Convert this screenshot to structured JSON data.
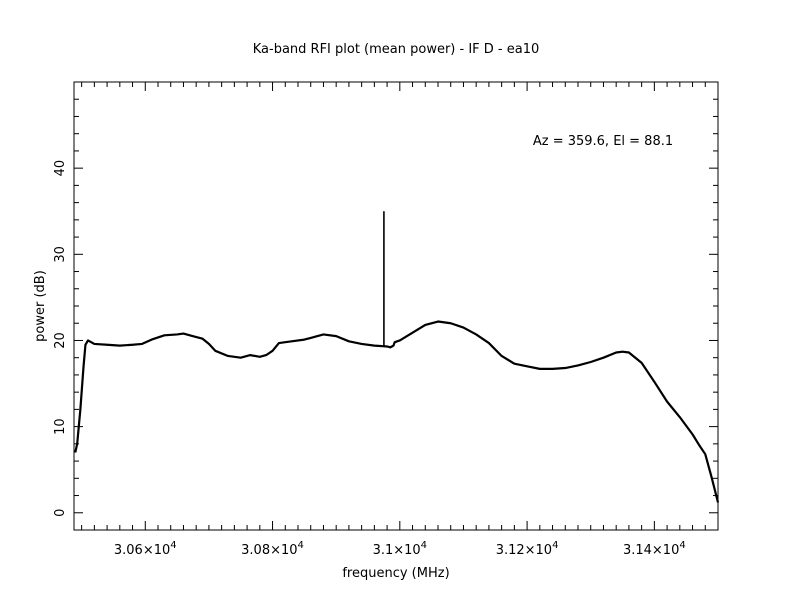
{
  "chart_data": {
    "type": "line",
    "title": "Ka-band RFI plot (mean power) - IF D - ea10",
    "xlabel": "frequency (MHz)",
    "ylabel": "power (dB)",
    "annotation": "Az = 359.6, El = 88.1",
    "xlim": [
      30488,
      31500
    ],
    "ylim": [
      -2,
      50
    ],
    "x_ticks": [
      30600,
      30800,
      31000,
      31200,
      31400
    ],
    "x_tick_labels": [
      {
        "mantissa": "3.06",
        "exponent": "4"
      },
      {
        "mantissa": "3.08",
        "exponent": "4"
      },
      {
        "mantissa": "3.1",
        "exponent": "4"
      },
      {
        "mantissa": "3.12",
        "exponent": "4"
      },
      {
        "mantissa": "3.14",
        "exponent": "4"
      }
    ],
    "y_ticks": [
      0,
      10,
      20,
      30,
      40
    ],
    "y_tick_labels": [
      "0",
      "10",
      "20",
      "30",
      "40"
    ],
    "grid": false,
    "series": [
      {
        "x": [
          30490,
          30493,
          30498,
          30503,
          30506,
          30510,
          30520,
          30540,
          30560,
          30580,
          30595,
          30610,
          30630,
          30650,
          30660,
          30675,
          30690,
          30700,
          30710,
          30730,
          30750,
          30765,
          30780,
          30790,
          30800,
          30810,
          30830,
          30850,
          30860,
          30880,
          30900,
          30920,
          30940,
          30960,
          30980,
          30985,
          30990,
          30992,
          31000,
          31020,
          31040,
          31060,
          31080,
          31100,
          31120,
          31140,
          31160,
          31180,
          31200,
          31220,
          31240,
          31260,
          31280,
          31300,
          31320,
          31340,
          31350,
          31360,
          31380,
          31400,
          31420,
          31440,
          31460,
          31470,
          31480,
          31490,
          31500
        ],
        "y": [
          7,
          8,
          12,
          17,
          19.5,
          20,
          19.6,
          19.5,
          19.4,
          19.5,
          19.6,
          20.1,
          20.6,
          20.7,
          20.8,
          20.5,
          20.2,
          19.6,
          18.8,
          18.2,
          18.0,
          18.3,
          18.1,
          18.3,
          18.8,
          19.7,
          19.9,
          20.1,
          20.3,
          20.7,
          20.5,
          19.9,
          19.6,
          19.4,
          19.3,
          19.2,
          19.4,
          19.8,
          20.0,
          20.9,
          21.8,
          22.2,
          22.0,
          21.5,
          20.7,
          19.7,
          18.2,
          17.3,
          17.0,
          16.7,
          16.7,
          16.8,
          17.1,
          17.5,
          18.0,
          18.6,
          18.7,
          18.6,
          17.4,
          15.2,
          12.9,
          11.1,
          9.1,
          7.9,
          6.8,
          4.1,
          1.2
        ]
      },
      {
        "x": [
          30975,
          30975
        ],
        "y": [
          19.4,
          35.0
        ]
      }
    ]
  }
}
